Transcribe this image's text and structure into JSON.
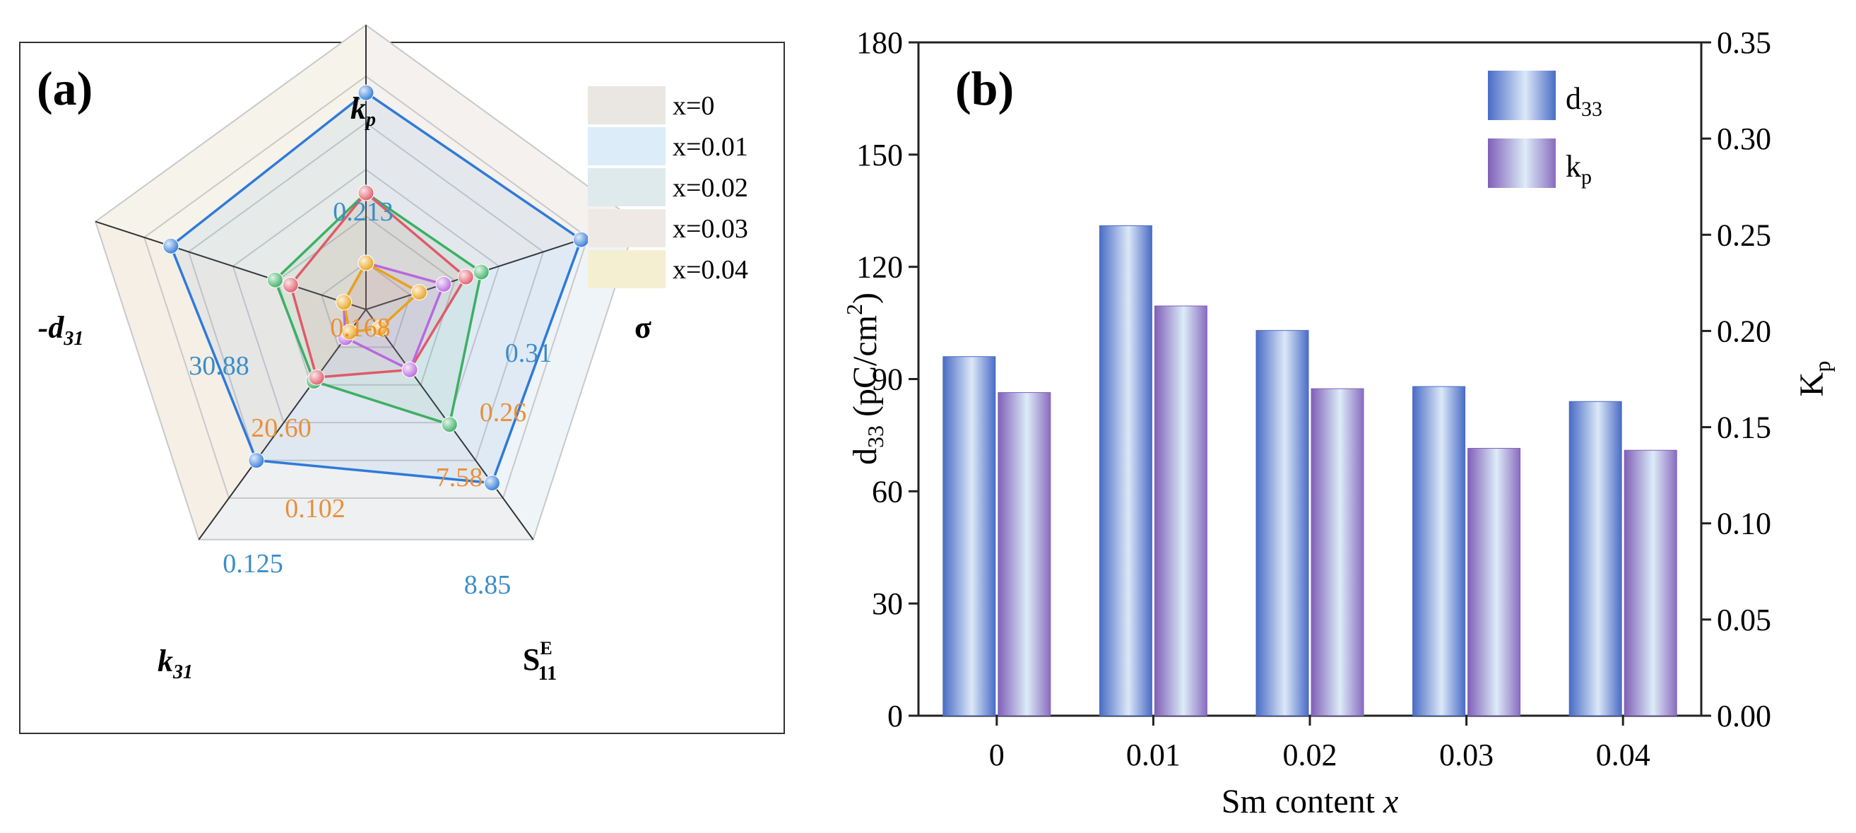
{
  "chart_data": [
    {
      "type": "radar",
      "panel_label": "(a)",
      "axes": [
        {
          "key": "kp",
          "label": "k",
          "sub": "p",
          "italic": true
        },
        {
          "key": "sigma",
          "label": "σ",
          "sub": "",
          "italic": false
        },
        {
          "key": "s11e",
          "label": "S",
          "sub": "11",
          "sup": "E",
          "italic": false
        },
        {
          "key": "k31",
          "label": "k",
          "sub": "31",
          "italic": true
        },
        {
          "key": "d31",
          "label": "-d",
          "sub": "31",
          "italic": true
        }
      ],
      "series": [
        {
          "name": "x=0",
          "color": "#e05a68",
          "fill": "#eae6e2",
          "values": [
            0.5,
            0.45,
            0.32,
            0.36,
            0.34
          ]
        },
        {
          "name": "x=0.01",
          "color": "#2f7ad8",
          "fill": "#dcecf8",
          "values": [
            0.93,
            0.97,
            0.92,
            0.8,
            0.88
          ]
        },
        {
          "name": "x=0.02",
          "color": "#3cb062",
          "fill": "#dfeaec",
          "values": [
            0.5,
            0.52,
            0.61,
            0.38,
            0.41
          ]
        },
        {
          "name": "x=0.03",
          "color": "#b868de",
          "fill": "#efe9e6",
          "values": [
            0.2,
            0.35,
            0.32,
            0.15,
            0.1
          ]
        },
        {
          "name": "x=0.04",
          "color": "#e8a218",
          "fill": "#f5efd2",
          "values": [
            0.2,
            0.24,
            0.1,
            0.12,
            0.1
          ]
        }
      ],
      "annotations": {
        "max": {
          "kp": "0.213",
          "sigma": "0.31",
          "s11e": "8.85",
          "k31": "0.125",
          "d31": "30.88"
        },
        "min": {
          "kp": "0.168",
          "sigma": "0.26",
          "s11e": "7.58",
          "k31": "0.102",
          "d31": "20.60"
        }
      },
      "max_color": "#3a8ec8",
      "min_color": "#e8903a"
    },
    {
      "type": "bar",
      "panel_label": "(b)",
      "categories": [
        "0",
        "0.01",
        "0.02",
        "0.03",
        "0.04"
      ],
      "series": [
        {
          "name": "d33",
          "legend_main": "d",
          "legend_sub": "33",
          "axis": "left",
          "values": [
            96,
            131,
            103,
            88,
            84
          ],
          "edge": "#4a6cc6",
          "light": "#dce8f8"
        },
        {
          "name": "kp",
          "legend_main": "k",
          "legend_sub": "p",
          "axis": "right",
          "values": [
            0.168,
            0.213,
            0.17,
            0.139,
            0.138
          ],
          "edge": "#8060b8",
          "light": "#dcecf8"
        }
      ],
      "xlabel": {
        "main": "Sm content ",
        "italic": "x"
      },
      "ylabel_left": {
        "main": "d",
        "sub": "33",
        "rest": " (pC/cm",
        "sup": "2",
        "end": ")"
      },
      "ylabel_right": {
        "main": "K",
        "sub": "p"
      },
      "ylim_left": [
        0,
        180
      ],
      "ylim_right": [
        0,
        0.35
      ],
      "yticks_left": [
        "0",
        "30",
        "60",
        "90",
        "120",
        "150",
        "180"
      ],
      "yticks_right": [
        "0.00",
        "0.05",
        "0.10",
        "0.15",
        "0.20",
        "0.25",
        "0.30",
        "0.35"
      ]
    }
  ]
}
